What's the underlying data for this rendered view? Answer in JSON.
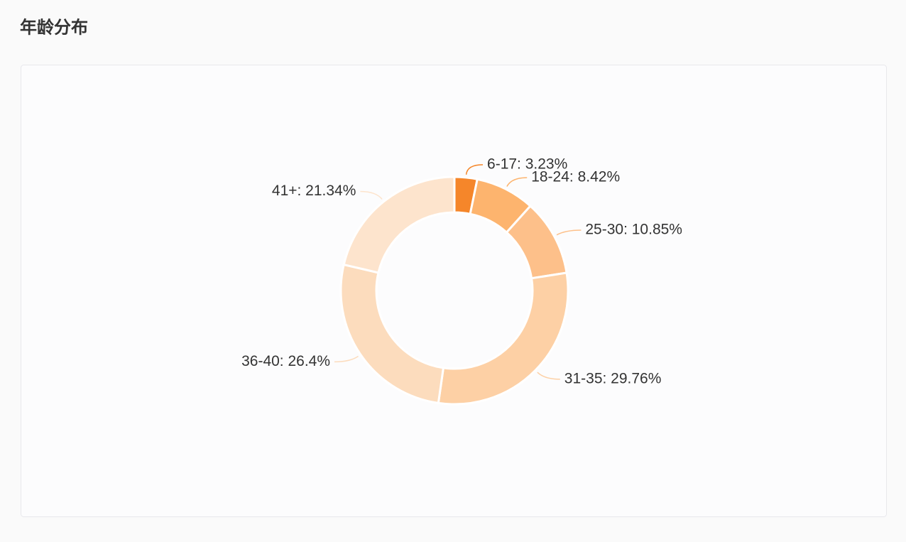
{
  "chart_data": {
    "type": "donut",
    "title": "年龄分布",
    "values": [
      3.23,
      8.42,
      10.85,
      29.76,
      26.4,
      21.34
    ],
    "value_labels": [
      "6-17: 3.23%",
      "18-24: 8.42%",
      "25-30: 10.85%",
      "31-35: 29.76%",
      "36-40: 26.4%",
      "41+: 21.34%"
    ],
    "colors": [
      "#f5862a",
      "#fdb46e",
      "#fdc08a",
      "#fdd0a5",
      "#fcdcbd",
      "#fde4cd"
    ]
  }
}
